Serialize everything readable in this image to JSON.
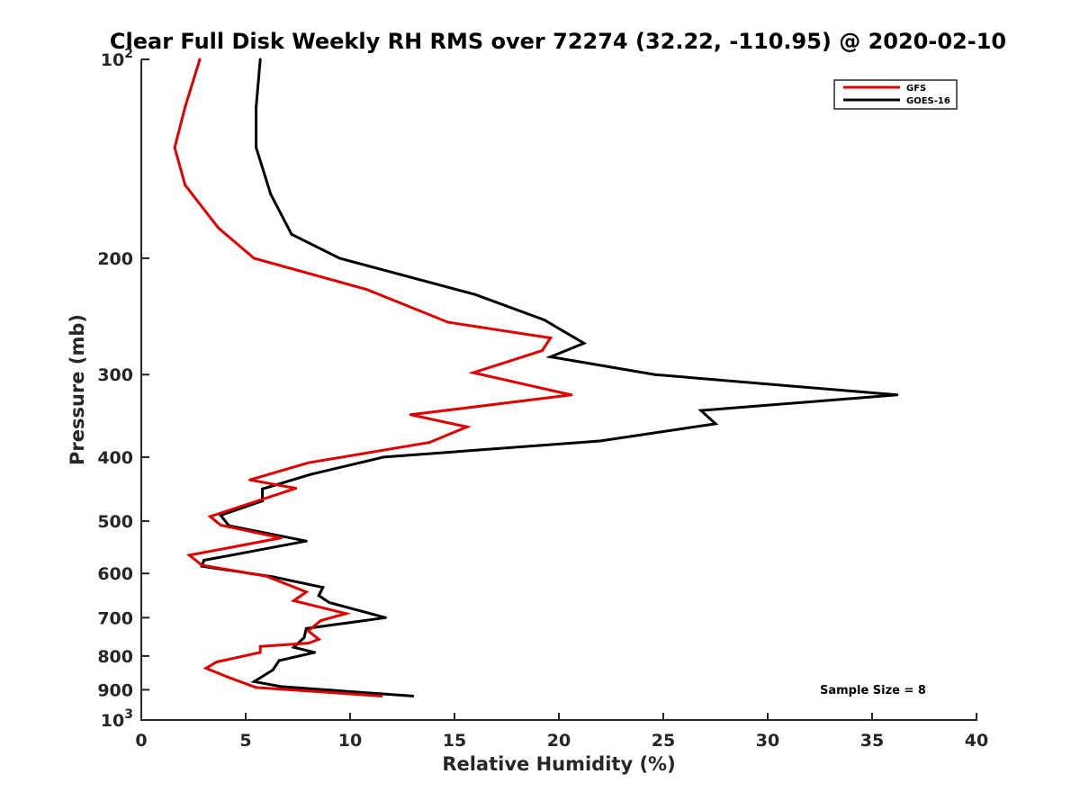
{
  "chart_data": {
    "type": "line",
    "title": "Clear Full Disk Weekly RH RMS over 72274 (32.22, -110.95) @ 2020-02-10",
    "xlabel": "Relative Humidity (%)",
    "ylabel": "Pressure (mb)",
    "xlim": [
      0,
      40
    ],
    "ylim": [
      100,
      1000
    ],
    "yscale": "log",
    "y_reversed": true,
    "grid": false,
    "legend_position": "top-right",
    "x_ticks": [
      0,
      5,
      10,
      15,
      20,
      25,
      30,
      35,
      40
    ],
    "x_tick_labels": [
      "0",
      "5",
      "10",
      "15",
      "20",
      "25",
      "30",
      "35",
      "40"
    ],
    "y_ticks": [
      100,
      200,
      300,
      400,
      500,
      600,
      700,
      800,
      900,
      1000
    ],
    "y_tick_labels": [
      {
        "base": "10",
        "exp": "2"
      },
      {
        "base": "200",
        "exp": ""
      },
      {
        "base": "300",
        "exp": ""
      },
      {
        "base": "400",
        "exp": ""
      },
      {
        "base": "500",
        "exp": ""
      },
      {
        "base": "600",
        "exp": ""
      },
      {
        "base": "700",
        "exp": ""
      },
      {
        "base": "800",
        "exp": ""
      },
      {
        "base": "900",
        "exp": ""
      },
      {
        "base": "10",
        "exp": "3"
      }
    ],
    "annotation": "Sample Size = 8",
    "series": [
      {
        "name": "GFS",
        "color": "#e00000",
        "points": [
          [
            2.8,
            100
          ],
          [
            2.1,
            118
          ],
          [
            1.6,
            136
          ],
          [
            2.1,
            155
          ],
          [
            3.7,
            180
          ],
          [
            5.4,
            200
          ],
          [
            10.8,
            223
          ],
          [
            14.7,
            250
          ],
          [
            19.6,
            264
          ],
          [
            19.2,
            276
          ],
          [
            15.9,
            298
          ],
          [
            20.6,
            322
          ],
          [
            12.9,
            345
          ],
          [
            15.6,
            360
          ],
          [
            13.8,
            380
          ],
          [
            8.0,
            408
          ],
          [
            5.2,
            433
          ],
          [
            7.4,
            446
          ],
          [
            3.3,
            492
          ],
          [
            3.8,
            507
          ],
          [
            6.7,
            530
          ],
          [
            3.5,
            554
          ],
          [
            2.3,
            563
          ],
          [
            2.9,
            583
          ],
          [
            6.0,
            606
          ],
          [
            7.9,
            640
          ],
          [
            7.3,
            660
          ],
          [
            9.8,
            690
          ],
          [
            8.6,
            707
          ],
          [
            8.0,
            733
          ],
          [
            8.5,
            755
          ],
          [
            8.0,
            765
          ],
          [
            5.7,
            774
          ],
          [
            5.7,
            790
          ],
          [
            3.6,
            817
          ],
          [
            3.1,
            835
          ],
          [
            4.1,
            860
          ],
          [
            5.5,
            893
          ],
          [
            11.5,
            920
          ]
        ]
      },
      {
        "name": "GOES-16",
        "color": "#000000",
        "points": [
          [
            5.7,
            100
          ],
          [
            5.5,
            118
          ],
          [
            5.5,
            136
          ],
          [
            6.2,
            160
          ],
          [
            7.2,
            184
          ],
          [
            9.5,
            200
          ],
          [
            16.0,
            227
          ],
          [
            19.3,
            248
          ],
          [
            21.2,
            269
          ],
          [
            19.6,
            282
          ],
          [
            24.6,
            300
          ],
          [
            36.2,
            322
          ],
          [
            26.8,
            340
          ],
          [
            27.5,
            356
          ],
          [
            22.0,
            378
          ],
          [
            11.6,
            400
          ],
          [
            8.1,
            425
          ],
          [
            5.8,
            447
          ],
          [
            5.8,
            466
          ],
          [
            3.8,
            490
          ],
          [
            4.2,
            508
          ],
          [
            7.9,
            536
          ],
          [
            4.7,
            560
          ],
          [
            3.0,
            573
          ],
          [
            2.9,
            585
          ],
          [
            6.3,
            607
          ],
          [
            8.7,
            630
          ],
          [
            8.5,
            648
          ],
          [
            9.0,
            664
          ],
          [
            11.7,
            700
          ],
          [
            7.9,
            727
          ],
          [
            7.8,
            750
          ],
          [
            7.3,
            776
          ],
          [
            8.3,
            790
          ],
          [
            6.6,
            813
          ],
          [
            6.3,
            840
          ],
          [
            5.4,
            875
          ],
          [
            6.7,
            890
          ],
          [
            13.0,
            920
          ]
        ]
      }
    ]
  }
}
